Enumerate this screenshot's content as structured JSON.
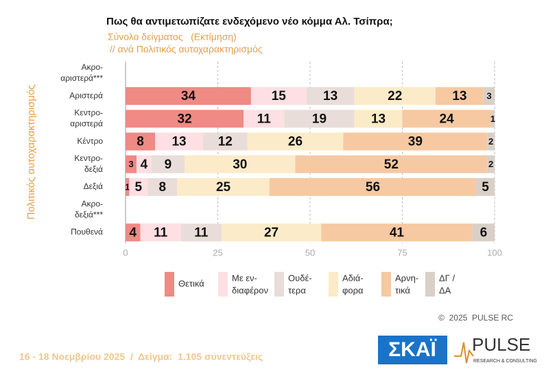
{
  "chart_data": {
    "type": "stacked-barh",
    "title": "Πως θα αντιμετωπίζατε ενδεχόμενο νέο κόμμα Αλ. Τσίπρα;",
    "subtitle": "Σύνολο δείγματος   (Εκτίμηση)",
    "subtitle2": "// ανά Πολιτικός αυτοχαρακτηρισμός",
    "y_label": "Πολιτικός αυτοχαρακτηρισμός",
    "categories": [
      [
        "Ακρο-",
        "αριστερά***"
      ],
      [
        "Αριστερά"
      ],
      [
        "Κεντρο-",
        "αριστερά"
      ],
      [
        "Κέντρο"
      ],
      [
        "Κεντρο-",
        "δεξιά"
      ],
      [
        "Δεξιά"
      ],
      [
        "Ακρο-",
        "δεξιά***"
      ],
      [
        "Πουθενά"
      ]
    ],
    "series": [
      {
        "name": [
          "Θετικά"
        ],
        "color": "#ef8a84",
        "values": [
          null,
          34,
          32,
          8,
          3,
          1,
          null,
          4
        ]
      },
      {
        "name": [
          "Με εν-",
          "διαφέρον"
        ],
        "color": "#fddfe4",
        "values": [
          null,
          15,
          11,
          13,
          4,
          5,
          null,
          11
        ]
      },
      {
        "name": [
          "Ουδέ-",
          "τερα"
        ],
        "color": "#e8ddd8",
        "values": [
          null,
          13,
          19,
          12,
          9,
          8,
          null,
          11
        ]
      },
      {
        "name": [
          "Αδιά-",
          "φορα"
        ],
        "color": "#fbebc8",
        "values": [
          null,
          22,
          13,
          26,
          30,
          25,
          null,
          27
        ]
      },
      {
        "name": [
          "Αρνη-",
          "τικά"
        ],
        "color": "#f6c9a2",
        "values": [
          null,
          13,
          24,
          39,
          52,
          56,
          null,
          41
        ]
      },
      {
        "name": [
          "ΔΓ /",
          "ΔΑ"
        ],
        "color": "#d9d0c7",
        "values": [
          null,
          3,
          1,
          2,
          2,
          5,
          null,
          6
        ]
      }
    ],
    "xlim": [
      0,
      100
    ],
    "xticks": [
      0,
      25,
      50,
      75,
      100
    ],
    "grid": true,
    "copyright": "©  2025  PULSE RC",
    "footer": "16 - 18 Νοεμβρίου 2025  /  Δείγμα:  1.105 συνεντεύξεις",
    "logos": [
      "ΣΚΑΪ",
      "PULSE",
      "RESEARCH & CONSULTING"
    ]
  }
}
